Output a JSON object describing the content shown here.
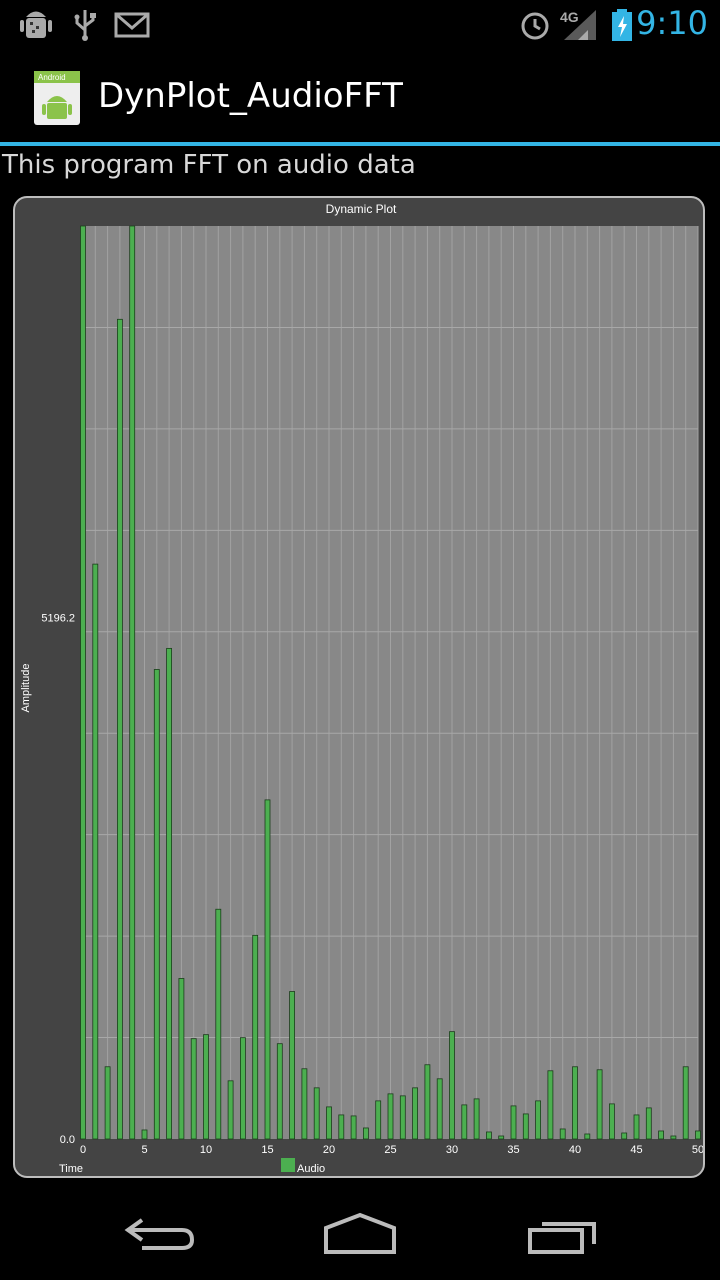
{
  "status_bar": {
    "time": "9:10",
    "network": "4G",
    "icons": [
      "android-debug-icon",
      "usb-icon",
      "gmail-icon",
      "alarm-icon",
      "signal-icon",
      "battery-charging-icon"
    ]
  },
  "app": {
    "title": "DynPlot_AudioFFT",
    "icon": "android-app-icon",
    "icon_text": "Android"
  },
  "description": "This program FFT on audio data",
  "chart_data": {
    "type": "bar",
    "title": "Dynamic Plot",
    "xlabel": "Time",
    "ylabel": "Amplitude",
    "ylim": [
      0,
      9100
    ],
    "xlim": [
      0,
      50
    ],
    "x_ticks": [
      0,
      5,
      10,
      15,
      20,
      25,
      30,
      35,
      40,
      45,
      50
    ],
    "y_tick_labels": [
      "0.0",
      "5196.2"
    ],
    "y_tick_values": [
      0,
      5196.2
    ],
    "grid": true,
    "legend_position": "bottom",
    "series": [
      {
        "name": "Audio",
        "color": "#4caf50",
        "x": [
          0,
          1,
          2,
          3,
          4,
          5,
          6,
          7,
          8,
          9,
          10,
          11,
          12,
          13,
          14,
          15,
          16,
          17,
          18,
          19,
          20,
          21,
          22,
          23,
          24,
          25,
          26,
          27,
          28,
          29,
          30,
          31,
          32,
          33,
          34,
          35,
          36,
          37,
          38,
          39,
          40,
          41,
          42,
          43,
          44,
          45,
          46,
          47,
          48,
          49,
          50
        ],
        "values": [
          9100,
          5730,
          720,
          8170,
          9100,
          90,
          4680,
          4890,
          1600,
          1000,
          1040,
          2290,
          580,
          1010,
          2030,
          3380,
          950,
          1470,
          700,
          510,
          320,
          240,
          230,
          110,
          380,
          450,
          430,
          510,
          740,
          600,
          1070,
          340,
          400,
          70,
          30,
          330,
          250,
          380,
          680,
          100,
          720,
          50,
          690,
          350,
          60,
          240,
          310,
          80,
          30,
          720,
          80
        ]
      }
    ]
  },
  "navigation": {
    "back": "back-icon",
    "home": "home-icon",
    "recents": "recent-apps-icon"
  }
}
